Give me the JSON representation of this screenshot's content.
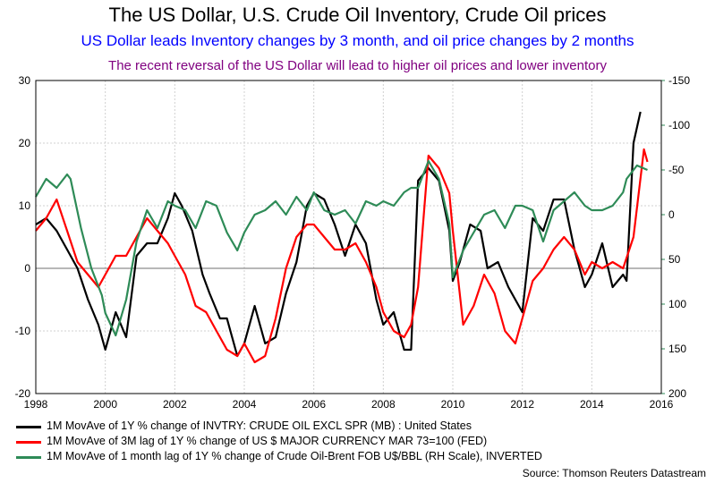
{
  "header": {
    "title": "The US Dollar, U.S. Crude Oil Inventory, Crude Oil prices",
    "subtitle": "US Dollar leads Inventory changes by 3 month, and oil price changes by 2 months",
    "subtitle2": "The recent reversal of the US Dollar will lead to higher oil prices and lower inventory"
  },
  "colors": {
    "inventory": "#000000",
    "dollar": "#ff0000",
    "oil": "#2e8b57",
    "grid": "#d0d0d0",
    "zero": "#707070"
  },
  "legend": [
    {
      "series": "inventory",
      "text": "1M MovAve of 1Y % change of INVTRY: CRUDE OIL EXCL SPR (MB) : United States"
    },
    {
      "series": "dollar",
      "text": "1M MovAve of 3M lag of 1Y % change of US $ MAJOR CURRENCY MAR 73=100 (FED)"
    },
    {
      "series": "oil",
      "text": "1M MovAve of 1 month lag of 1Y % change of Crude Oil-Brent  FOB U$/BBL (RH Scale), INVERTED"
    }
  ],
  "source": "Source: Thomson Reuters Datastream",
  "chart_data": {
    "type": "line",
    "x_ticks": [
      "1998",
      "2000",
      "2002",
      "2004",
      "2006",
      "2008",
      "2010",
      "2012",
      "2014",
      "2016"
    ],
    "left_axis": {
      "ylim": [
        -20,
        30
      ],
      "ticks": [
        "30",
        "20",
        "10",
        "0",
        "-10",
        "-20"
      ]
    },
    "right_axis": {
      "inverted": true,
      "ylim": [
        -150,
        200
      ],
      "ticks": [
        "-150",
        "-100",
        "-50",
        "0",
        "50",
        "100",
        "150",
        "200"
      ]
    },
    "grid": true,
    "x_range": [
      1998,
      2016
    ],
    "series": [
      {
        "key": "inventory",
        "axis": "left",
        "x": [
          1998.0,
          1998.3,
          1998.6,
          1998.9,
          1999.2,
          1999.5,
          1999.8,
          2000.0,
          2000.3,
          2000.6,
          2000.9,
          2001.2,
          2001.5,
          2001.8,
          2002.0,
          2002.2,
          2002.5,
          2002.8,
          2003.0,
          2003.3,
          2003.5,
          2003.8,
          2004.0,
          2004.3,
          2004.6,
          2004.9,
          2005.2,
          2005.5,
          2005.8,
          2006.0,
          2006.3,
          2006.6,
          2006.9,
          2007.2,
          2007.5,
          2007.8,
          2008.0,
          2008.3,
          2008.6,
          2008.8,
          2009.0,
          2009.3,
          2009.6,
          2009.9,
          2010.0,
          2010.2,
          2010.5,
          2010.8,
          2011.0,
          2011.3,
          2011.6,
          2011.9,
          2012.0,
          2012.3,
          2012.6,
          2012.9,
          2013.2,
          2013.5,
          2013.8,
          2014.0,
          2014.3,
          2014.6,
          2014.9,
          2015.0,
          2015.2,
          2015.4
        ],
        "y": [
          7,
          8,
          6,
          3,
          0,
          -5,
          -9,
          -13,
          -7,
          -11,
          2,
          4,
          4,
          8,
          12,
          10,
          6,
          -1,
          -4,
          -8,
          -8,
          -14,
          -12,
          -6,
          -12,
          -11,
          -4,
          1,
          10,
          12,
          11,
          7,
          2,
          7,
          4,
          -5,
          -9,
          -7,
          -13,
          -13,
          14,
          16,
          14,
          6,
          -2,
          1,
          7,
          6,
          0,
          1,
          -3,
          -6,
          -7,
          8,
          6,
          11,
          11,
          3,
          -3,
          -1,
          4,
          -3,
          -1,
          -2,
          20,
          25
        ]
      },
      {
        "key": "dollar",
        "axis": "left",
        "x": [
          1998.0,
          1998.3,
          1998.6,
          1998.9,
          1999.2,
          1999.5,
          1999.8,
          2000.0,
          2000.3,
          2000.6,
          2000.9,
          2001.2,
          2001.5,
          2001.8,
          2002.0,
          2002.3,
          2002.6,
          2002.9,
          2003.2,
          2003.5,
          2003.8,
          2004.0,
          2004.3,
          2004.6,
          2004.9,
          2005.2,
          2005.5,
          2005.8,
          2006.0,
          2006.3,
          2006.6,
          2006.9,
          2007.2,
          2007.5,
          2007.8,
          2008.0,
          2008.3,
          2008.6,
          2008.8,
          2009.0,
          2009.3,
          2009.6,
          2009.9,
          2010.0,
          2010.3,
          2010.6,
          2010.9,
          2011.2,
          2011.5,
          2011.8,
          2012.0,
          2012.3,
          2012.6,
          2012.9,
          2013.2,
          2013.5,
          2013.8,
          2014.0,
          2014.3,
          2014.6,
          2014.9,
          2015.2,
          2015.5,
          2015.6
        ],
        "y": [
          6,
          8,
          11,
          6,
          1,
          -1,
          -3,
          -1,
          2,
          2,
          5,
          8,
          6,
          4,
          2,
          -1,
          -6,
          -7,
          -10,
          -13,
          -14,
          -12,
          -15,
          -14,
          -8,
          0,
          5,
          7,
          7,
          5,
          3,
          3,
          4,
          1,
          -3,
          -7,
          -10,
          -11,
          -9,
          -3,
          18,
          16,
          12,
          6,
          -9,
          -6,
          -1,
          -4,
          -10,
          -12,
          -8,
          -2,
          0,
          3,
          5,
          3,
          -1,
          1,
          0,
          1,
          0,
          5,
          19,
          17
        ]
      },
      {
        "key": "oil",
        "axis": "right",
        "x": [
          1998.0,
          1998.3,
          1998.6,
          1998.9,
          1999.0,
          1999.3,
          1999.6,
          1999.9,
          2000.0,
          2000.3,
          2000.6,
          2000.9,
          2001.2,
          2001.5,
          2001.8,
          2002.0,
          2002.3,
          2002.6,
          2002.9,
          2003.2,
          2003.5,
          2003.8,
          2004.0,
          2004.3,
          2004.6,
          2004.9,
          2005.2,
          2005.5,
          2005.8,
          2006.0,
          2006.3,
          2006.6,
          2006.9,
          2007.2,
          2007.5,
          2007.8,
          2008.0,
          2008.3,
          2008.6,
          2008.8,
          2009.0,
          2009.3,
          2009.6,
          2009.9,
          2010.0,
          2010.3,
          2010.6,
          2010.9,
          2011.2,
          2011.5,
          2011.8,
          2012.0,
          2012.3,
          2012.6,
          2012.9,
          2013.2,
          2013.5,
          2013.8,
          2014.0,
          2014.3,
          2014.6,
          2014.9,
          2015.0,
          2015.3,
          2015.6
        ],
        "y": [
          -20,
          -40,
          -30,
          -45,
          -40,
          15,
          60,
          90,
          110,
          135,
          95,
          30,
          -5,
          15,
          -15,
          -10,
          -5,
          15,
          -15,
          -10,
          20,
          40,
          20,
          0,
          -5,
          -15,
          0,
          -20,
          -5,
          -25,
          -5,
          0,
          -5,
          10,
          -15,
          -10,
          -15,
          -10,
          -25,
          -30,
          -30,
          -60,
          -40,
          10,
          70,
          40,
          20,
          0,
          -5,
          15,
          -10,
          -10,
          -5,
          30,
          -5,
          -15,
          -25,
          -10,
          -5,
          -5,
          -10,
          -25,
          -40,
          -55,
          -50
        ]
      }
    ]
  }
}
